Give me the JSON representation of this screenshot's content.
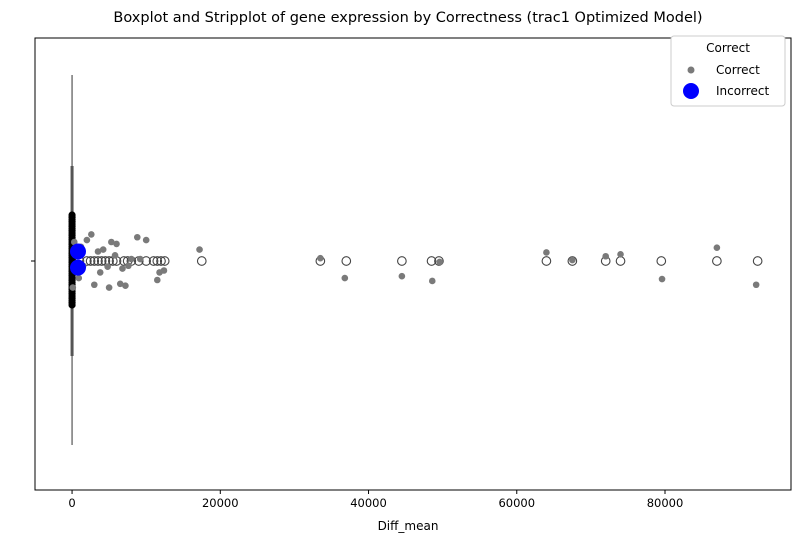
{
  "chart_data": {
    "type": "scatter",
    "title": "Boxplot and Stripplot of gene expression by Correctness (trac1 Optimized Model)",
    "xlabel": "Diff_mean",
    "ylabel": "",
    "xlim": [
      -5000,
      97000
    ],
    "x_ticks": [
      0,
      20000,
      40000,
      60000,
      80000
    ],
    "x_tick_labels": [
      "0",
      "20000",
      "40000",
      "60000",
      "80000"
    ],
    "grid": false,
    "legend": {
      "title": "Correct",
      "placement": "top-right",
      "entries": [
        "Correct",
        "Incorrect"
      ]
    },
    "boxplot": {
      "q1": 0,
      "median": 0,
      "q3": 0,
      "whisker_low": 0,
      "whisker_high": 0,
      "outliers": [
        1000,
        2000,
        2500,
        3000,
        3500,
        4000,
        4500,
        5000,
        5500,
        6000,
        7000,
        7500,
        8000,
        9000,
        10000,
        11000,
        11500,
        12000,
        12500,
        17500,
        33500,
        37000,
        44500,
        48500,
        49500,
        64000,
        67500,
        72000,
        74000,
        79500,
        87000,
        92500
      ]
    },
    "series": [
      {
        "name": "Correct",
        "color": "#7a7a7a",
        "x": [
          100,
          300,
          600,
          900,
          1200,
          1500,
          2000,
          2600,
          3000,
          3500,
          3800,
          4200,
          4800,
          5000,
          5300,
          5800,
          6000,
          6500,
          6800,
          7200,
          7600,
          8000,
          8800,
          9200,
          10000,
          11500,
          11800,
          12400,
          17200,
          33500,
          36800,
          44500,
          48600,
          49600,
          64000,
          67500,
          72000,
          74000,
          79600,
          87000,
          92300
        ],
        "jitter": [
          0.28,
          -0.2,
          0.08,
          0.18,
          -0.15,
          0.05,
          -0.22,
          -0.28,
          0.25,
          -0.1,
          0.12,
          -0.12,
          0.06,
          0.28,
          -0.2,
          -0.06,
          -0.18,
          0.24,
          0.08,
          0.26,
          0.05,
          -0.02,
          -0.25,
          -0.02,
          -0.22,
          0.2,
          0.12,
          0.1,
          -0.12,
          -0.03,
          0.18,
          0.16,
          0.21,
          0.01,
          -0.09,
          -0.01,
          -0.05,
          -0.07,
          0.19,
          -0.14,
          0.25
        ]
      },
      {
        "name": "Incorrect",
        "color": "#0000ff",
        "x": [
          800,
          800
        ],
        "jitter": [
          0.07,
          -0.1
        ]
      }
    ]
  }
}
